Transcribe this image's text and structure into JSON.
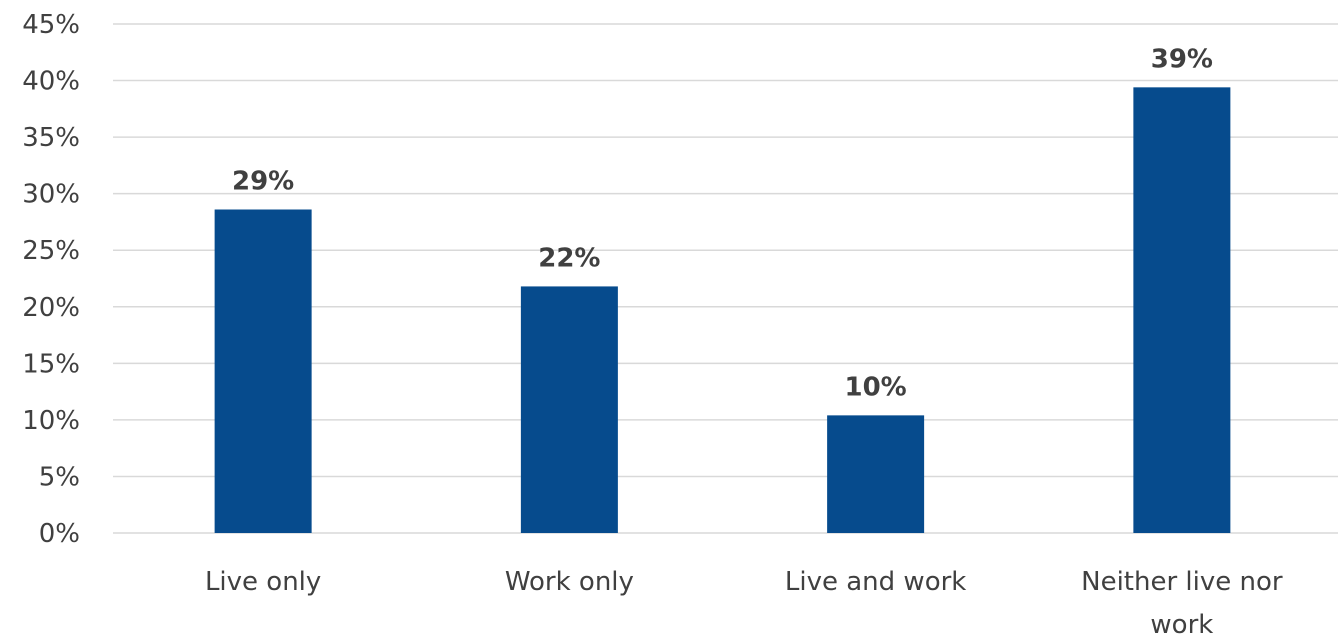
{
  "chart_data": {
    "type": "bar",
    "categories": [
      [
        "Live only"
      ],
      [
        "Work only"
      ],
      [
        "Live and work"
      ],
      [
        "Neither live nor",
        "work"
      ]
    ],
    "values": [
      28.6,
      21.8,
      10.4,
      39.4
    ],
    "data_labels": [
      "29%",
      "22%",
      "10%",
      "39%"
    ],
    "ylim": [
      0,
      45
    ],
    "yticks": [
      0,
      5,
      10,
      15,
      20,
      25,
      30,
      35,
      40,
      45
    ],
    "ytick_labels": [
      "0%",
      "5%",
      "10%",
      "15%",
      "20%",
      "25%",
      "30%",
      "35%",
      "40%",
      "45%"
    ],
    "grid": true,
    "legend": "none",
    "bar_color": "#064B8D",
    "grid_color": "#d9d9d9",
    "text_color": "#404040"
  }
}
